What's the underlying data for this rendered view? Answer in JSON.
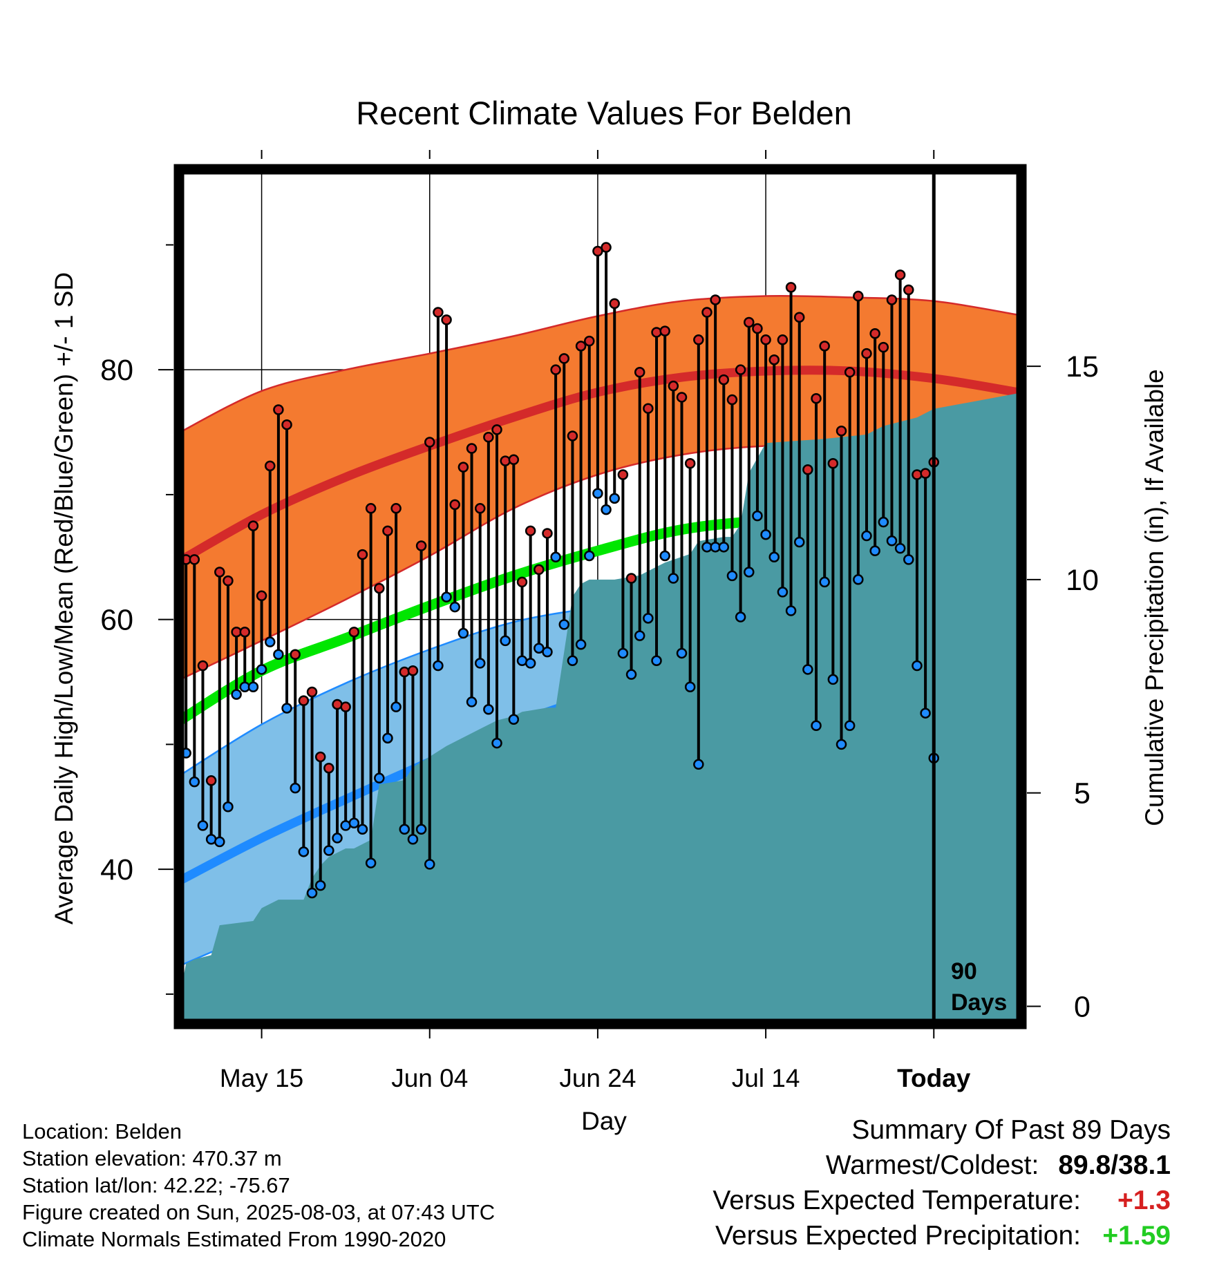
{
  "title": "Recent Climate Values For Belden",
  "xlabel": "Day",
  "ylabel_left": "Average Daily High/Low/Mean (Red/Blue/Green) +/- 1 SD",
  "ylabel_right": "Cumulative Precipitation (in), If Available",
  "days_label": [
    "90",
    "Days"
  ],
  "info": {
    "location": "Location: Belden",
    "elevation": "Station elevation: 470.37 m",
    "latlon": "Station lat/lon: 42.22; -75.67",
    "created": "Figure created on Sun, 2025-08-03, at 07:43 UTC",
    "normals": "Climate Normals Estimated From 1990-2020"
  },
  "summary": {
    "heading": "Summary Of Past 89 Days",
    "warm_cold_label": "Warmest/Coldest:",
    "warm_cold_value": "89.8/38.1",
    "temp_label": "Versus Expected Temperature:",
    "temp_value": "+1.3",
    "precip_label": "Versus Expected Precipitation:",
    "precip_value": "+1.59"
  },
  "colors": {
    "high_band": "#f47a30",
    "high_mean": "#d42a2a",
    "low_band": "#7fbfe8",
    "low_mean": "#1f8bff",
    "mean_line": "#00e600",
    "precip": "#4a9aa3",
    "high_marker": "#d42a2a",
    "low_marker": "#1f8bff",
    "summary_temp": "#d62020",
    "summary_precip": "#22cc22"
  },
  "chart_data": {
    "type": "line",
    "x_start": "2025-05-05",
    "x_end": "2025-08-14",
    "today": "2025-08-03",
    "x_ticks": [
      {
        "date": "2025-05-15",
        "label": "May 15"
      },
      {
        "date": "2025-06-04",
        "label": "Jun 04"
      },
      {
        "date": "2025-06-24",
        "label": "Jun 24"
      },
      {
        "date": "2025-07-14",
        "label": "Jul 14"
      },
      {
        "date": "2025-08-03",
        "label": "Today"
      }
    ],
    "ylim_temp": [
      28,
      96
    ],
    "y_ticks_temp": [
      40,
      60,
      80
    ],
    "ylim_precip": [
      -0.3,
      19.6
    ],
    "y_ticks_precip": [
      0,
      5,
      10,
      15
    ],
    "normals": {
      "x": [
        "2025-05-05",
        "2025-05-15",
        "2025-05-25",
        "2025-06-04",
        "2025-06-14",
        "2025-06-24",
        "2025-07-04",
        "2025-07-14",
        "2025-07-24",
        "2025-08-03",
        "2025-08-13"
      ],
      "high_mean": [
        64.6,
        68.4,
        71.4,
        73.9,
        76.2,
        78.2,
        79.4,
        79.9,
        79.9,
        79.3,
        78.2
      ],
      "high_upper": [
        74.9,
        78.3,
        80.0,
        81.3,
        82.7,
        84.3,
        85.5,
        85.9,
        85.8,
        85.5,
        84.4
      ],
      "high_lower": [
        55.1,
        58.3,
        61.6,
        65.1,
        68.9,
        71.6,
        73.2,
        73.9,
        73.9,
        73.6,
        72.9
      ],
      "mean": [
        51.8,
        55.9,
        58.5,
        61.1,
        63.5,
        65.5,
        67.2,
        67.9,
        67.9,
        67.6,
        66.6
      ],
      "low_mean": [
        39.0,
        42.5,
        45.6,
        48.6,
        51.6,
        53.9,
        55.6,
        56.1,
        56.1,
        55.9,
        55.2
      ],
      "low_upper": [
        47.4,
        51.6,
        54.9,
        57.6,
        59.8,
        61.0,
        62.0,
        62.1,
        62.1,
        61.8,
        61.2
      ],
      "low_lower": [
        32.2,
        35.1,
        38.0,
        41.6,
        45.1,
        48.4,
        50.2,
        50.8,
        50.8,
        50.6,
        50.0
      ]
    },
    "daily": {
      "start": "2025-05-05",
      "highs": [
        63.6,
        64.8,
        64.8,
        56.3,
        47.1,
        63.8,
        63.1,
        59.0,
        59.0,
        67.5,
        61.9,
        72.3,
        76.8,
        75.6,
        57.2,
        53.5,
        54.2,
        49.0,
        48.1,
        53.2,
        53.0,
        59.0,
        65.2,
        68.9,
        62.5,
        67.1,
        68.9,
        55.8,
        55.9,
        65.9,
        74.2,
        84.6,
        84.0,
        69.2,
        72.2,
        73.7,
        68.9,
        74.6,
        75.2,
        72.7,
        72.8,
        63.0,
        67.1,
        64.0,
        66.9,
        80.0,
        80.9,
        74.7,
        81.9,
        82.3,
        89.5,
        89.8,
        85.3,
        71.6,
        63.3,
        79.8,
        76.9,
        83.0,
        83.1,
        78.7,
        77.8,
        72.5,
        82.4,
        84.6,
        85.6,
        79.2,
        77.6,
        80.0,
        83.8,
        83.3,
        82.4,
        80.8,
        82.4,
        86.6,
        84.2,
        72.0,
        77.7,
        81.9,
        72.5,
        75.1,
        79.8,
        85.9,
        81.3,
        82.9,
        81.8,
        85.6,
        87.6,
        86.4,
        71.6,
        71.7,
        72.6
      ],
      "lows": [
        55.0,
        49.3,
        47.0,
        43.5,
        42.4,
        42.2,
        45.0,
        54.0,
        54.6,
        54.6,
        56.0,
        58.2,
        57.2,
        52.9,
        46.5,
        41.4,
        38.1,
        38.7,
        41.5,
        42.5,
        43.5,
        43.7,
        43.2,
        40.5,
        47.3,
        50.5,
        53.0,
        43.2,
        42.4,
        43.2,
        40.4,
        56.3,
        61.8,
        61.0,
        58.9,
        53.4,
        56.5,
        52.8,
        50.1,
        58.3,
        52.0,
        56.7,
        56.5,
        57.7,
        57.4,
        65.0,
        59.6,
        56.7,
        58.0,
        65.1,
        70.1,
        68.8,
        69.7,
        57.3,
        55.6,
        58.7,
        60.1,
        56.7,
        65.1,
        63.3,
        57.3,
        54.6,
        48.4,
        65.8,
        65.8,
        65.8,
        63.5,
        60.2,
        63.8,
        68.3,
        66.8,
        65.0,
        62.2,
        60.7,
        66.2,
        56.0,
        51.5,
        63.0,
        55.2,
        50.0,
        51.5,
        63.2,
        66.7,
        65.5,
        67.8,
        66.3,
        65.7,
        64.8,
        56.3,
        52.5,
        48.9
      ]
    },
    "precip": {
      "x": [
        "2025-05-05",
        "2025-05-06",
        "2025-05-07",
        "2025-05-09",
        "2025-05-10",
        "2025-05-14",
        "2025-05-15",
        "2025-05-17",
        "2025-05-18",
        "2025-05-20",
        "2025-05-21",
        "2025-05-22",
        "2025-05-23",
        "2025-05-24",
        "2025-05-25",
        "2025-05-26",
        "2025-05-27",
        "2025-05-28",
        "2025-05-29",
        "2025-06-01",
        "2025-06-02",
        "2025-06-06",
        "2025-06-08",
        "2025-06-10",
        "2025-06-12",
        "2025-06-14",
        "2025-06-15",
        "2025-06-18",
        "2025-06-19",
        "2025-06-21",
        "2025-06-22",
        "2025-06-23",
        "2025-06-26",
        "2025-06-29",
        "2025-07-01",
        "2025-07-02",
        "2025-07-05",
        "2025-07-06",
        "2025-07-09",
        "2025-07-10",
        "2025-07-11",
        "2025-07-12",
        "2025-07-14",
        "2025-07-21",
        "2025-07-26",
        "2025-07-28",
        "2025-08-01",
        "2025-08-03",
        "2025-08-14"
      ],
      "cumulative": [
        0.0,
        1.0,
        1.1,
        1.2,
        1.9,
        2.0,
        2.3,
        2.5,
        2.5,
        2.5,
        3.0,
        3.3,
        3.5,
        3.6,
        3.7,
        3.7,
        3.8,
        3.9,
        5.2,
        5.3,
        5.6,
        6.1,
        6.3,
        6.5,
        6.7,
        6.8,
        6.9,
        7.0,
        7.0,
        9.6,
        9.9,
        10.0,
        10.0,
        10.1,
        10.3,
        10.4,
        10.6,
        10.9,
        11.0,
        11.0,
        11.3,
        12.5,
        13.2,
        13.3,
        13.4,
        13.6,
        13.8,
        14.0,
        14.4
      ]
    }
  }
}
